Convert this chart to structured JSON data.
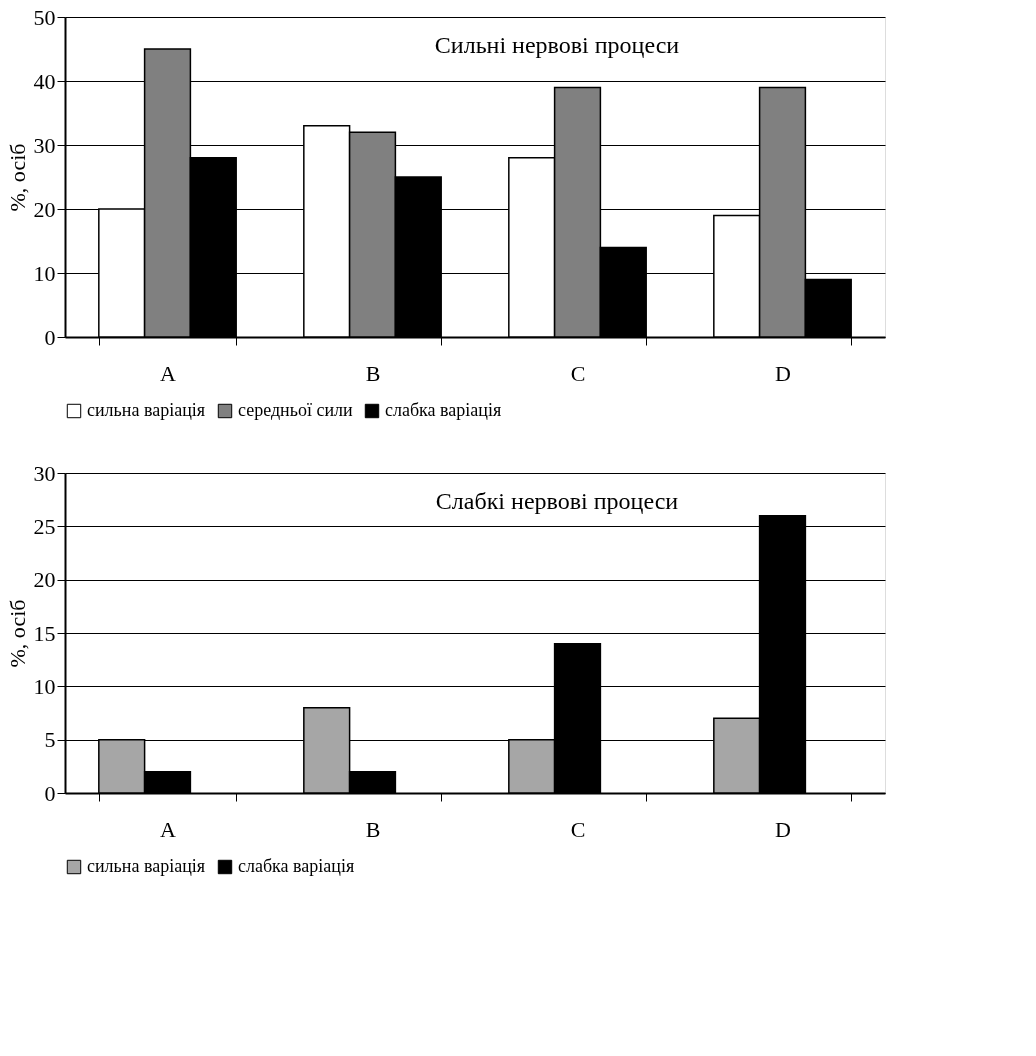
{
  "chart_data": [
    {
      "type": "bar",
      "title": "Сильні нервові процеси",
      "ylabel": "%, осіб",
      "categories": [
        "A",
        "B",
        "C",
        "D"
      ],
      "series": [
        {
          "name": "сильна варіація",
          "color": "#ffffff",
          "values": [
            20,
            33,
            28,
            19
          ]
        },
        {
          "name": "середньої сили",
          "color": "#808080",
          "values": [
            45,
            32,
            39,
            39
          ]
        },
        {
          "name": "слабка варіація",
          "color": "#000000",
          "values": [
            28,
            25,
            14,
            9
          ]
        }
      ],
      "ylim": [
        0,
        50
      ],
      "yticks": [
        0,
        10,
        20,
        30,
        40,
        50
      ],
      "grid": "y",
      "legend": "bottom"
    },
    {
      "type": "bar",
      "title": "Слабкі нервові процеси",
      "ylabel": "%, осіб",
      "categories": [
        "A",
        "B",
        "C",
        "D"
      ],
      "series": [
        {
          "name": "сильна варіація",
          "color": "#a6a6a6",
          "values": [
            5,
            8,
            5,
            7
          ]
        },
        {
          "name": "слабка варіація",
          "color": "#000000",
          "values": [
            2,
            2,
            14,
            26
          ]
        }
      ],
      "ylim": [
        0,
        30
      ],
      "yticks": [
        0,
        5,
        10,
        15,
        20,
        25,
        30
      ],
      "grid": "y",
      "legend": "bottom"
    }
  ]
}
